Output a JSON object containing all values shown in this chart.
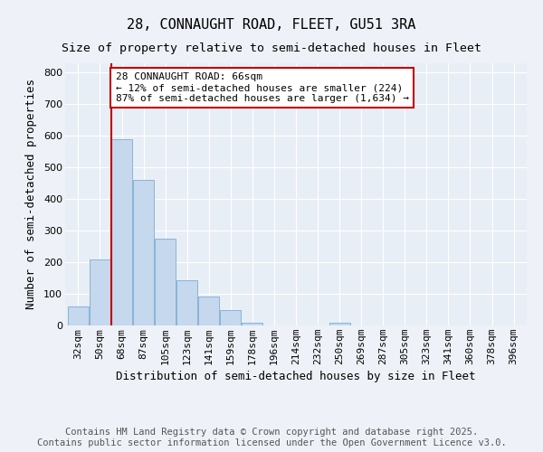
{
  "title": "28, CONNAUGHT ROAD, FLEET, GU51 3RA",
  "subtitle": "Size of property relative to semi-detached houses in Fleet",
  "xlabel": "Distribution of semi-detached houses by size in Fleet",
  "ylabel": "Number of semi-detached properties",
  "categories": [
    "32sqm",
    "50sqm",
    "68sqm",
    "87sqm",
    "105sqm",
    "123sqm",
    "141sqm",
    "159sqm",
    "178sqm",
    "196sqm",
    "214sqm",
    "232sqm",
    "250sqm",
    "269sqm",
    "287sqm",
    "305sqm",
    "323sqm",
    "341sqm",
    "360sqm",
    "378sqm",
    "396sqm"
  ],
  "values": [
    60,
    210,
    590,
    460,
    275,
    143,
    93,
    48,
    8,
    0,
    0,
    0,
    8,
    0,
    0,
    0,
    0,
    0,
    0,
    0,
    0
  ],
  "bar_color": "#c5d8ee",
  "bar_edge_color": "#7aadd4",
  "vline_color": "#c00000",
  "annotation_text": "28 CONNAUGHT ROAD: 66sqm\n← 12% of semi-detached houses are smaller (224)\n87% of semi-detached houses are larger (1,634) →",
  "annotation_box_color": "#ffffff",
  "annotation_box_edge": "#c00000",
  "ylim": [
    0,
    830
  ],
  "yticks": [
    0,
    100,
    200,
    300,
    400,
    500,
    600,
    700,
    800
  ],
  "footer_line1": "Contains HM Land Registry data © Crown copyright and database right 2025.",
  "footer_line2": "Contains public sector information licensed under the Open Government Licence v3.0.",
  "bg_color": "#eef2f8",
  "plot_bg_color": "#e8eef6",
  "grid_color": "#ffffff",
  "title_fontsize": 11,
  "subtitle_fontsize": 9.5,
  "axis_label_fontsize": 9,
  "tick_fontsize": 8,
  "annotation_fontsize": 8,
  "footer_fontsize": 7.5
}
